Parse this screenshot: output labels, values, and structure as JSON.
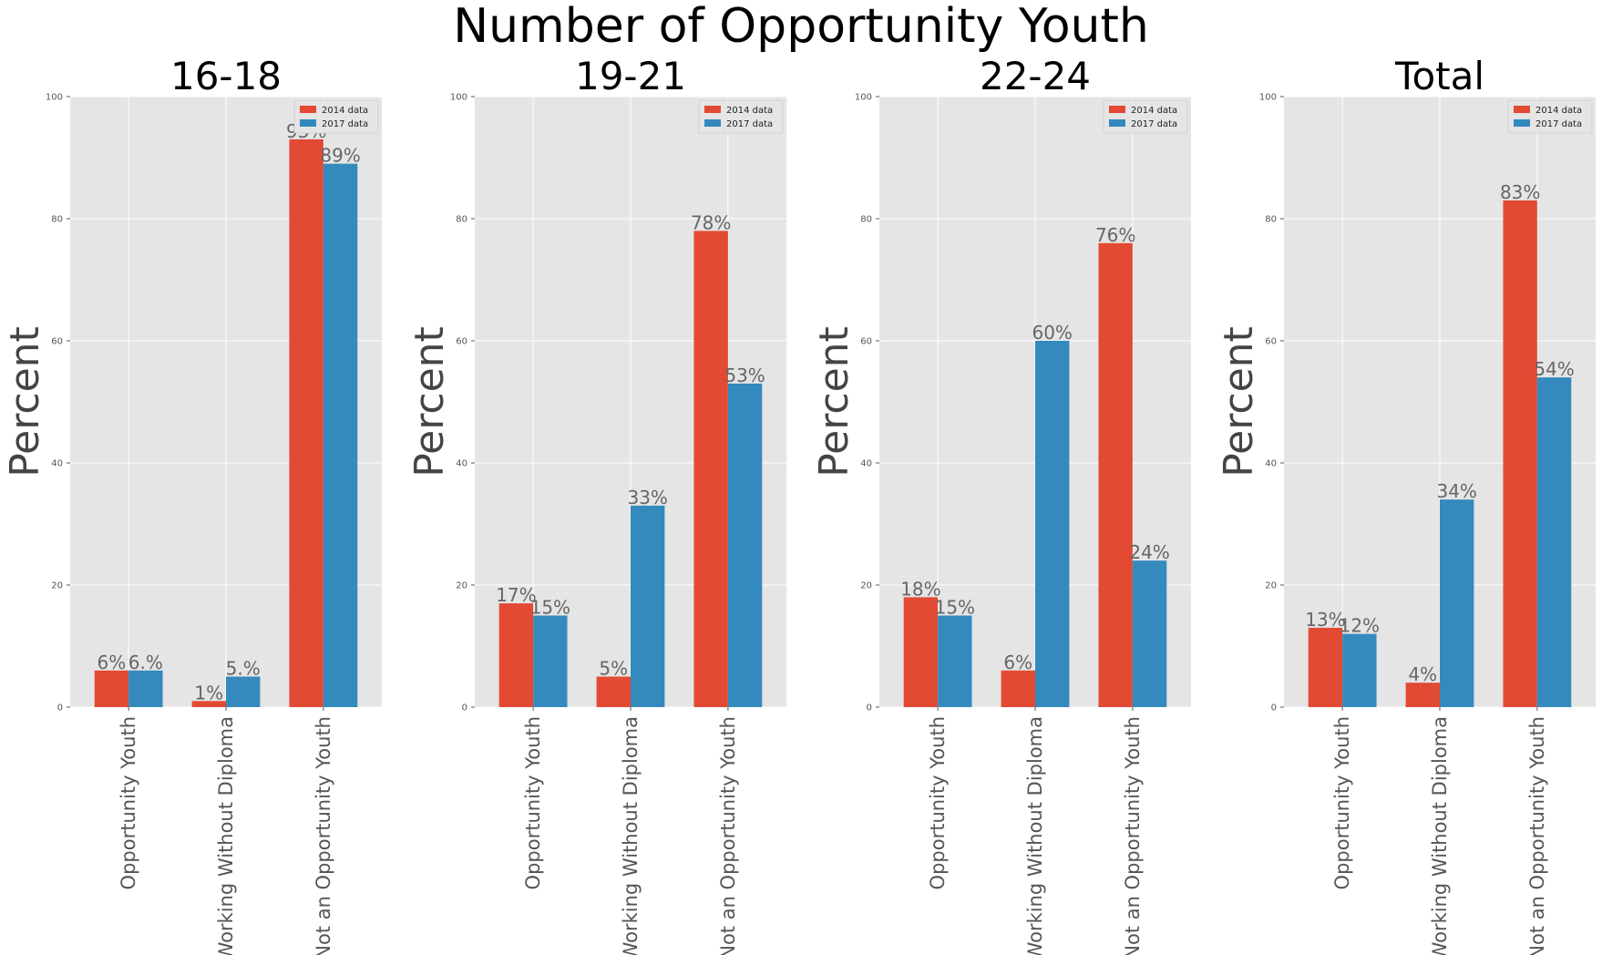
{
  "title": "Number of Opportunity Youth",
  "colors": {
    "series_2014": "#E24A33",
    "series_2017": "#348ABD",
    "plot_bg": "#E5E5E5",
    "grid": "#FFFFFF"
  },
  "chart_data": [
    {
      "type": "bar",
      "title": "16-18",
      "ylabel": "Percent",
      "ylim": [
        0,
        100
      ],
      "yticks": [
        0,
        20,
        40,
        60,
        80,
        100
      ],
      "categories": [
        "Opportunity Youth",
        "Working Without Diploma",
        "Not an Opportunity Youth"
      ],
      "series": [
        {
          "name": "2014 data",
          "values": [
            6,
            1,
            93
          ],
          "labels": [
            "6%",
            "1%",
            "93%"
          ]
        },
        {
          "name": "2017 data",
          "values": [
            6,
            5,
            89
          ],
          "labels": [
            "6.%",
            "5.%",
            "89%"
          ]
        }
      ],
      "legend": "top-right",
      "grid": true
    },
    {
      "type": "bar",
      "title": "19-21",
      "ylabel": "Percent",
      "ylim": [
        0,
        100
      ],
      "yticks": [
        0,
        20,
        40,
        60,
        80,
        100
      ],
      "categories": [
        "Opportunity Youth",
        "Working Without Diploma",
        "Not an Opportunity Youth"
      ],
      "series": [
        {
          "name": "2014 data",
          "values": [
            17,
            5,
            78
          ],
          "labels": [
            "17%",
            "5%",
            "78%"
          ]
        },
        {
          "name": "2017 data",
          "values": [
            15,
            33,
            53
          ],
          "labels": [
            "15%",
            "33%",
            "53%"
          ]
        }
      ],
      "legend": "top-right",
      "grid": true
    },
    {
      "type": "bar",
      "title": "22-24",
      "ylabel": "Percent",
      "ylim": [
        0,
        100
      ],
      "yticks": [
        0,
        20,
        40,
        60,
        80,
        100
      ],
      "categories": [
        "Opportunity Youth",
        "Working Without Diploma",
        "Not an Opportunity Youth"
      ],
      "series": [
        {
          "name": "2014 data",
          "values": [
            18,
            6,
            76
          ],
          "labels": [
            "18%",
            "6%",
            "76%"
          ]
        },
        {
          "name": "2017 data",
          "values": [
            15,
            60,
            24
          ],
          "labels": [
            "15%",
            "60%",
            "24%"
          ]
        }
      ],
      "legend": "top-right",
      "grid": true
    },
    {
      "type": "bar",
      "title": "Total",
      "ylabel": "Percent",
      "ylim": [
        0,
        100
      ],
      "yticks": [
        0,
        20,
        40,
        60,
        80,
        100
      ],
      "categories": [
        "Opportunity Youth",
        "Working Without Diploma",
        "Not an Opportunity Youth"
      ],
      "series": [
        {
          "name": "2014 data",
          "values": [
            13,
            4,
            83
          ],
          "labels": [
            "13%",
            "4%",
            "83%"
          ]
        },
        {
          "name": "2017 data",
          "values": [
            12,
            34,
            54
          ],
          "labels": [
            "12%",
            "34%",
            "54%"
          ]
        }
      ],
      "legend": "top-right",
      "grid": true
    }
  ]
}
